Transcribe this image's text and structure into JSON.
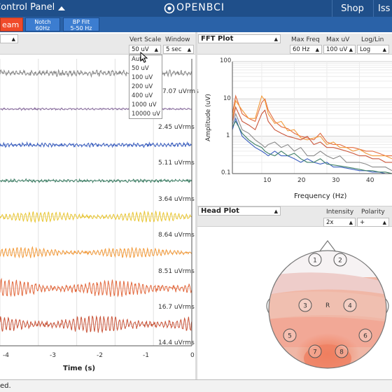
{
  "topbar": {
    "control_panel_label": "Control Panel",
    "brand": "OpenBCI",
    "shop_label": "Shop",
    "issues_label": "Iss"
  },
  "toolbar": {
    "stream_label": "eam",
    "notch_line1": "Notch",
    "notch_line2": "60Hz",
    "bp_line1": "BP Filt",
    "bp_line2": "5-50 Hz"
  },
  "time_series": {
    "vert_scale_label": "Vert Scale",
    "window_label": "Window",
    "vert_scale_value": "50 uV",
    "window_value": "5 sec",
    "vert_scale_options": [
      "Auto",
      "50 uV",
      "100 uV",
      "200 uV",
      "400 uV",
      "1000 uV",
      "10000 uV"
    ],
    "channel_rms": [
      "7.07 uVrms",
      "2.45 uVrms",
      "5.11 uVrms",
      "3.64 uVrms",
      "8.64 uVrms",
      "8.51 uVrms",
      "16.7 uVrms",
      "14.4 uVrms"
    ],
    "x_ticks": [
      "-4",
      "-3",
      "-2",
      "-1",
      "0"
    ],
    "xlabel": "Time (s)"
  },
  "fft": {
    "title": "FFT Plot",
    "max_freq_label": "Max Freq",
    "max_uv_label": "Max uV",
    "loglin_label": "Log/Lin",
    "max_freq_value": "60 Hz",
    "max_uv_value": "100 uV",
    "loglin_value": "Log",
    "y_ticks": [
      "100",
      "10",
      "1",
      "0.1"
    ],
    "x_ticks": [
      "10",
      "20",
      "30",
      "40"
    ],
    "ylabel": "Amplitude (uV)",
    "xlabel": "Frequency (Hz)"
  },
  "head": {
    "title": "Head Plot",
    "intensity_label": "Intensity",
    "polarity_label": "Polarity",
    "intensity_value": "2x",
    "polarity_value": "+",
    "electrodes": [
      "1",
      "2",
      "3",
      "4",
      "5",
      "6",
      "7",
      "8"
    ],
    "ref_label": "R"
  },
  "status": {
    "text": "ed."
  },
  "colors": {
    "topbar": "#1f4f8a",
    "toolbar": "#2a62a8",
    "stream_button": "#f04a2a",
    "channels": [
      "#8a8a8a",
      "#8b6fa0",
      "#3b5fc0",
      "#3f7f66",
      "#e8c531",
      "#f29a3a",
      "#e26a3f",
      "#c9553a"
    ]
  },
  "chart_data": [
    {
      "type": "line",
      "title": "",
      "xlabel": "Time (s)",
      "ylabel": "",
      "xlim": [
        -5,
        0
      ],
      "series": [
        {
          "name": "",
          "values": [
            7.07
          ]
        },
        {
          "name": "",
          "values": [
            2.45
          ]
        },
        {
          "name": "",
          "values": [
            5.11
          ]
        },
        {
          "name": "",
          "values": [
            3.64
          ]
        },
        {
          "name": "",
          "values": [
            8.64
          ]
        },
        {
          "name": "",
          "values": [
            8.51
          ]
        },
        {
          "name": "",
          "values": [
            16.7
          ]
        },
        {
          "name": "",
          "values": [
            14.4
          ]
        }
      ]
    },
    {
      "type": "line",
      "title": "",
      "xlabel": "Frequency (Hz)",
      "ylabel": "Amplitude (uV)",
      "xlim": [
        1,
        50
      ],
      "ylim": [
        0.1,
        100
      ],
      "yscale": "log",
      "x": [
        1,
        2,
        4,
        6,
        8,
        10,
        11,
        12,
        14,
        16,
        18,
        20,
        22,
        24,
        26,
        28,
        30,
        32,
        34,
        36,
        38,
        40,
        42,
        44,
        46,
        48,
        50
      ],
      "series": [
        {
          "name": "",
          "values": [
            4,
            12,
            4,
            3,
            2.5,
            8,
            10,
            5,
            2.5,
            1.8,
            1.6,
            1.2,
            1.0,
            0.9,
            0.8,
            1.2,
            0.7,
            0.6,
            0.6,
            0.5,
            0.5,
            0.45,
            0.4,
            0.4,
            0.35,
            0.3,
            0.3
          ]
        },
        {
          "name": "",
          "values": [
            3,
            9,
            5,
            3,
            3,
            12,
            9,
            4,
            2.2,
            2.5,
            1.4,
            1.5,
            0.9,
            0.8,
            0.9,
            1.0,
            0.6,
            0.7,
            0.5,
            0.5,
            0.4,
            0.45,
            0.35,
            0.3,
            0.3,
            0.3,
            0.25
          ]
        },
        {
          "name": "",
          "values": [
            2.5,
            6,
            2.5,
            2,
            1.5,
            4,
            5,
            2.5,
            1.5,
            1.2,
            1.0,
            0.9,
            0.8,
            1.0,
            0.6,
            0.7,
            0.5,
            0.5,
            0.45,
            0.4,
            0.35,
            0.3,
            0.3,
            0.25,
            0.25,
            0.2,
            0.2
          ]
        },
        {
          "name": "",
          "values": [
            2,
            4,
            1.5,
            1.2,
            0.8,
            0.6,
            0.5,
            0.6,
            0.7,
            0.5,
            0.6,
            0.4,
            0.5,
            0.3,
            0.3,
            0.4,
            0.3,
            0.25,
            0.3,
            0.2,
            0.2,
            0.2,
            0.18,
            0.15,
            0.15,
            0.15,
            0.12
          ]
        },
        {
          "name": "",
          "values": [
            1.5,
            3,
            1.0,
            0.7,
            0.5,
            0.4,
            0.35,
            0.3,
            0.4,
            0.3,
            0.3,
            0.25,
            0.2,
            0.25,
            0.2,
            0.18,
            0.2,
            0.15,
            0.15,
            0.14,
            0.13,
            0.12,
            0.12,
            0.11,
            0.11,
            0.1,
            0.1
          ]
        },
        {
          "name": "",
          "values": [
            1.8,
            2.5,
            1.2,
            0.8,
            0.6,
            0.5,
            0.4,
            0.35,
            0.3,
            0.4,
            0.3,
            0.35,
            0.25,
            0.2,
            0.2,
            0.25,
            0.18,
            0.17,
            0.16,
            0.15,
            0.14,
            0.13,
            0.12,
            0.12,
            0.11,
            0.11,
            0.1
          ]
        }
      ]
    }
  ]
}
